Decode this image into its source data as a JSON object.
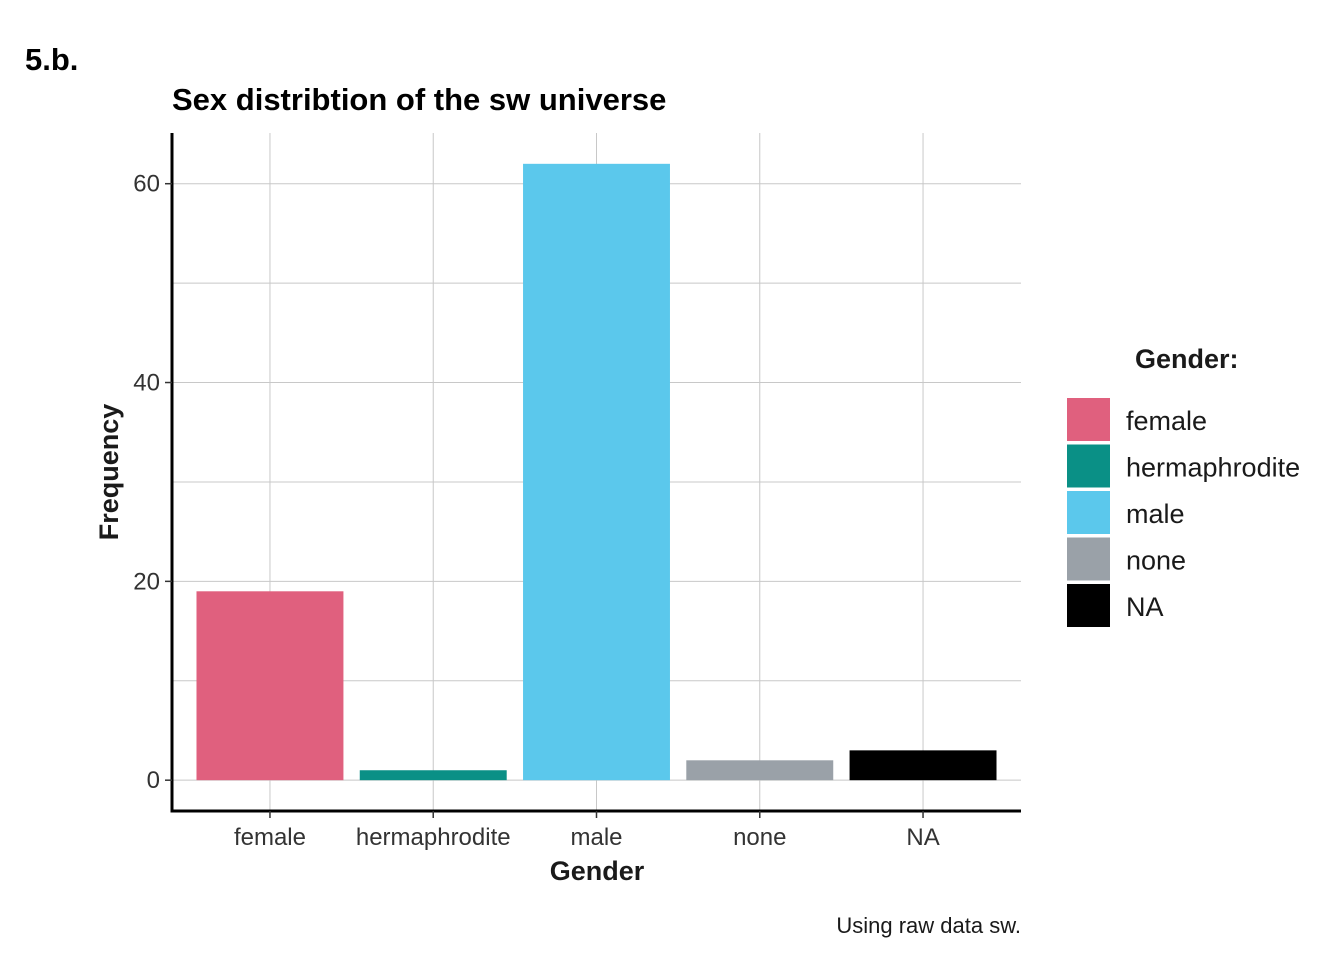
{
  "tag": "5.b.",
  "caption": "Using raw data sw.",
  "chart_data": {
    "type": "bar",
    "title": "Sex distribtion of the sw universe",
    "xlabel": "Gender",
    "ylabel": "Frequency",
    "categories": [
      "female",
      "hermaphrodite",
      "male",
      "none",
      "NA"
    ],
    "values": [
      19,
      1,
      62,
      2,
      3
    ],
    "ylim": [
      -3.1,
      65.1
    ],
    "yticks": [
      0,
      20,
      40,
      60
    ],
    "y_minor_grid": [
      10,
      30,
      50
    ],
    "grid": true,
    "colors": [
      "#E0607E",
      "#0A9086",
      "#5BC8EC",
      "#9AA1A8",
      "#000000"
    ],
    "legend": {
      "title": "Gender:",
      "position": "right",
      "entries": [
        "female",
        "hermaphrodite",
        "male",
        "none",
        "NA"
      ]
    }
  }
}
